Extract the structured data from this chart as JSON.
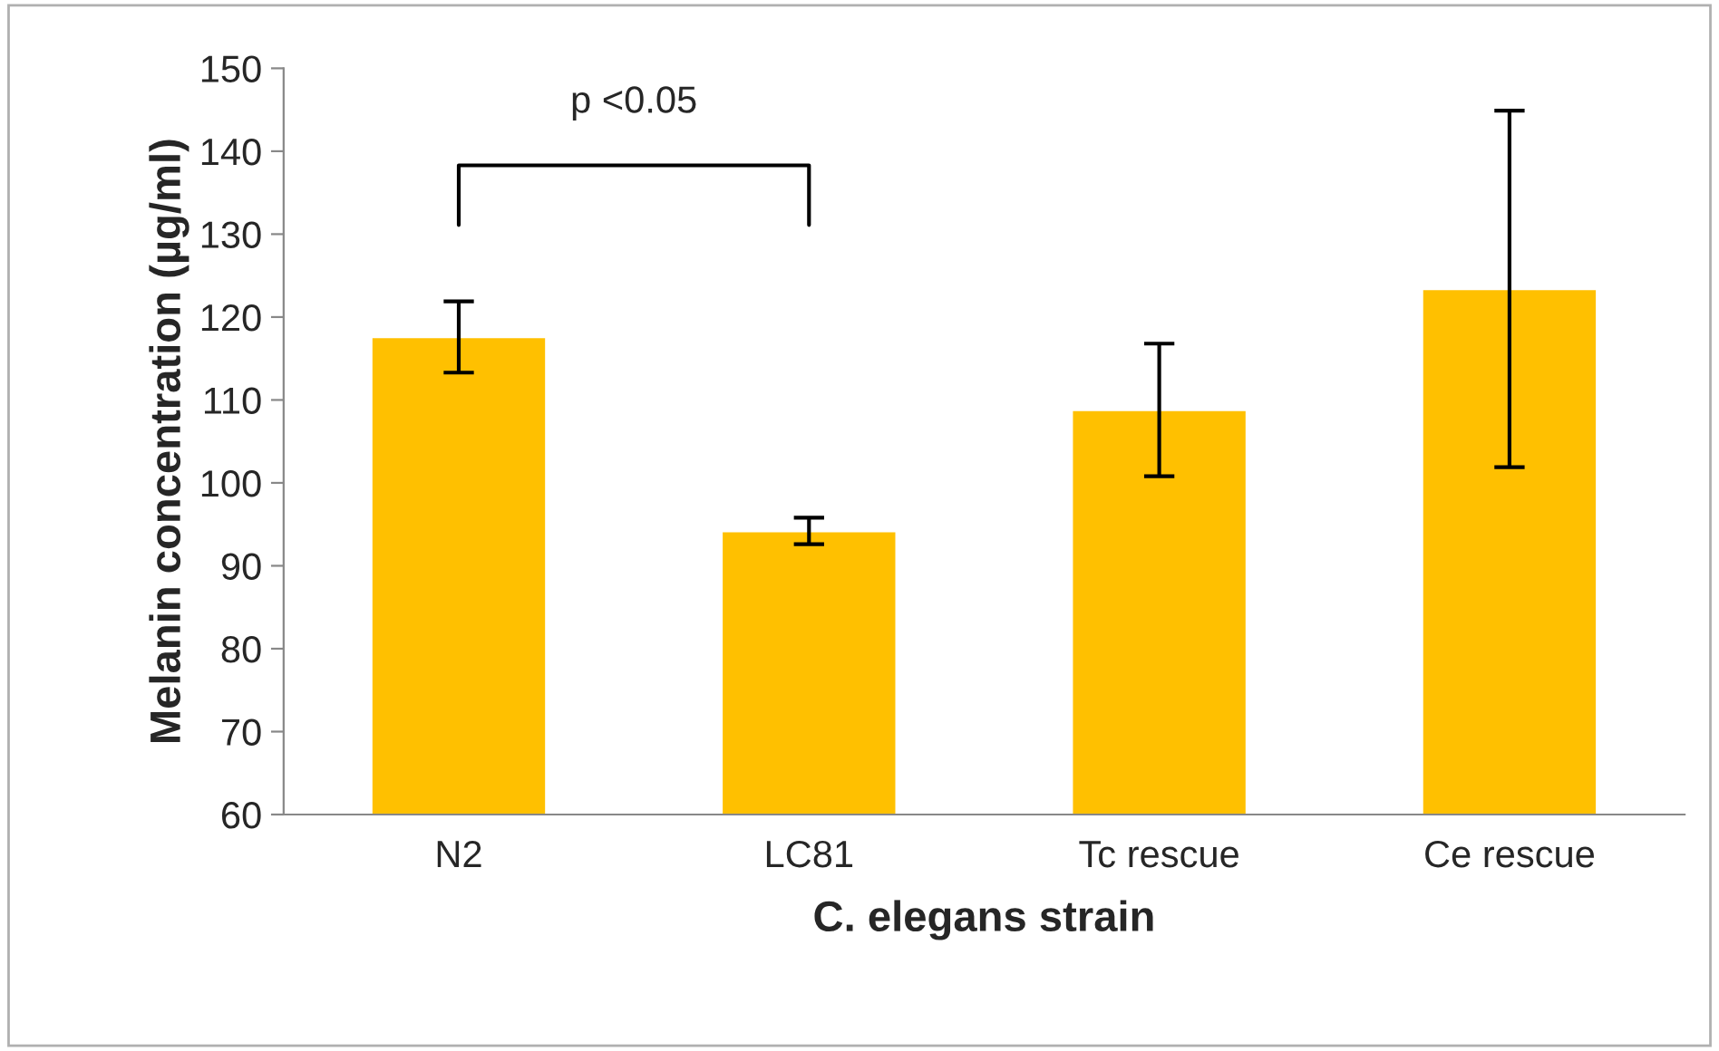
{
  "chart_data": {
    "type": "bar",
    "categories": [
      "N2",
      "LC81",
      "Tc rescue",
      "Ce rescue"
    ],
    "values": [
      117.6,
      94.2,
      108.8,
      123.4
    ],
    "errors": [
      4.3,
      1.6,
      8.0,
      21.5
    ],
    "color": "#ffc000",
    "xlabel": "C. elegans strain",
    "ylabel": "Melanin concentration (µg/ml)",
    "ylim": [
      60,
      150
    ],
    "yticks": [
      60,
      70,
      80,
      90,
      100,
      110,
      120,
      130,
      140,
      150
    ],
    "annotations": [
      "p <0.05"
    ],
    "grid": false,
    "legend": false
  }
}
